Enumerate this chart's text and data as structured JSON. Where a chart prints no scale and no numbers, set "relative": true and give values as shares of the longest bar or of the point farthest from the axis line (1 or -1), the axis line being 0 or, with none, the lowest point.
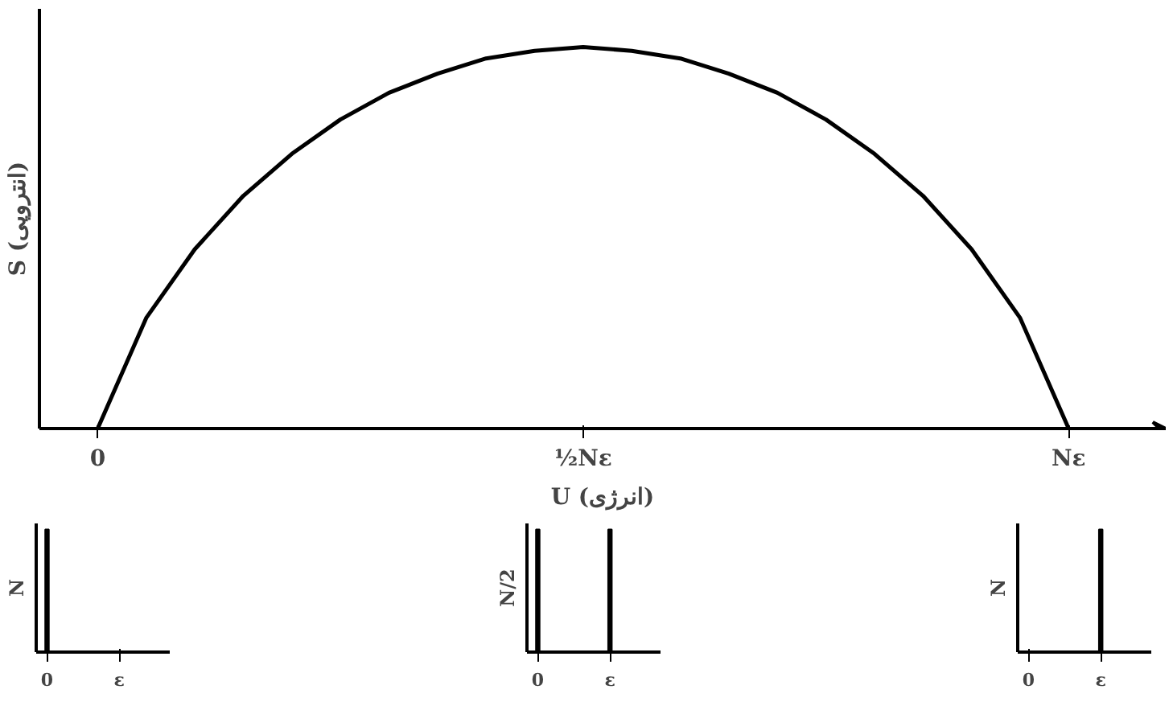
{
  "chart_data": [
    {
      "type": "line",
      "xlabel": "U (انرژی)",
      "ylabel": "S (انتروپی)",
      "relative": true,
      "grid": false,
      "marker": "none",
      "line_style": "solid",
      "categories": [
        "0",
        null,
        null,
        null,
        null,
        null,
        null,
        null,
        null,
        null,
        "½Nε",
        null,
        null,
        null,
        null,
        null,
        null,
        null,
        null,
        null,
        "Nε"
      ],
      "series": [
        {
          "color": "#000000",
          "values": [
            0,
            0.29,
            0.47,
            0.61,
            0.72,
            0.81,
            0.88,
            0.93,
            0.97,
            0.99,
            1,
            0.99,
            0.97,
            0.93,
            0.88,
            0.81,
            0.72,
            0.61,
            0.47,
            0.29,
            0
          ]
        }
      ]
    },
    {
      "type": "bar",
      "ylabel": "N",
      "relative": true,
      "categories": [
        "0",
        "ε"
      ],
      "values": [
        1,
        0
      ],
      "color": "#000000",
      "grid": false
    },
    {
      "type": "bar",
      "ylabel": "N/2",
      "relative": true,
      "categories": [
        "0",
        "ε"
      ],
      "values": [
        1,
        1
      ],
      "color": "#000000",
      "grid": false
    },
    {
      "type": "bar",
      "ylabel": "N",
      "relative": true,
      "categories": [
        "0",
        "ε"
      ],
      "values": [
        0,
        1
      ],
      "color": "#000000",
      "grid": false
    }
  ]
}
